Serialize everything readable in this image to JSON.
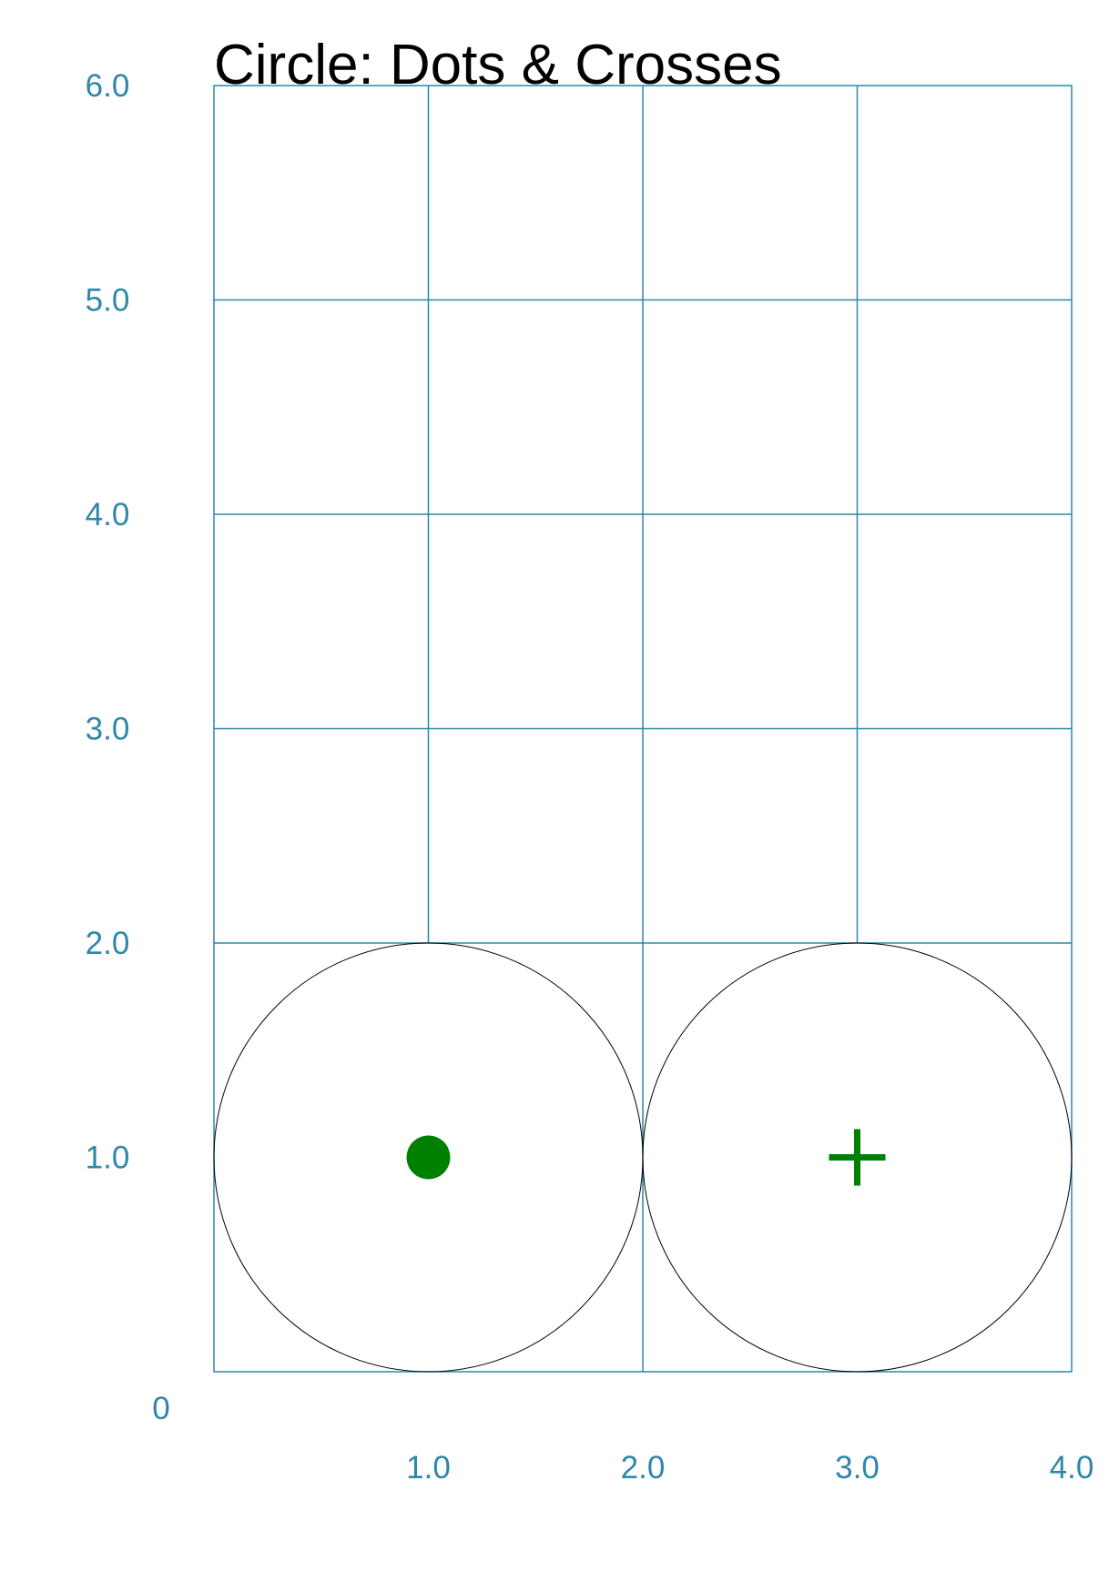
{
  "title": "Circle: Dots & Crosses",
  "axis_color": "#2e86ab",
  "marker_color": "#008000",
  "outline_color": "#000000",
  "chart_data": {
    "type": "scatter",
    "title": "Circle: Dots & Crosses",
    "xlim": [
      0,
      4
    ],
    "ylim": [
      0,
      6
    ],
    "grid": true,
    "origin_label": "0",
    "x_ticks": [
      {
        "value": 1,
        "label": "1.0"
      },
      {
        "value": 2,
        "label": "2.0"
      },
      {
        "value": 3,
        "label": "3.0"
      },
      {
        "value": 4,
        "label": "4.0"
      }
    ],
    "y_ticks": [
      {
        "value": 1,
        "label": "1.0"
      },
      {
        "value": 2,
        "label": "2.0"
      },
      {
        "value": 3,
        "label": "3.0"
      },
      {
        "value": 4,
        "label": "4.0"
      },
      {
        "value": 5,
        "label": "5.0"
      },
      {
        "value": 6,
        "label": "6.0"
      }
    ],
    "circles": [
      {
        "cx": 1,
        "cy": 1,
        "r": 1,
        "marker": "dot"
      },
      {
        "cx": 3,
        "cy": 1,
        "r": 1,
        "marker": "cross"
      }
    ]
  }
}
